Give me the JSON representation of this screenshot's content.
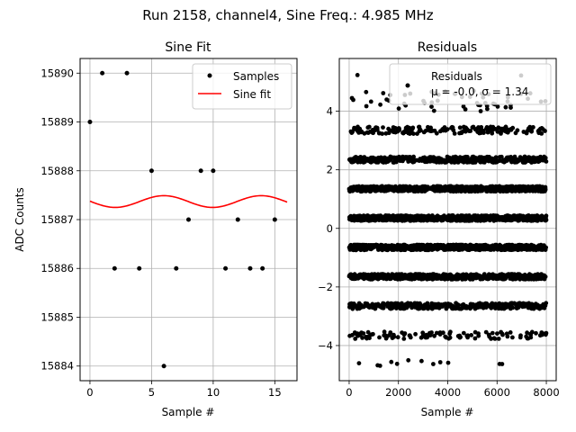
{
  "figure_title": "Run 2158, channel4, Sine Freq.: 4.985 MHz",
  "chart_data": [
    {
      "type": "scatter",
      "title": "Sine Fit",
      "xlabel": "Sample #",
      "ylabel": "ADC Counts",
      "xlim": [
        -0.8,
        16.8
      ],
      "ylim": [
        15883.7,
        15890.3
      ],
      "xticks": [
        0,
        5,
        10,
        15
      ],
      "yticks": [
        15884,
        15885,
        15886,
        15887,
        15888,
        15889,
        15890
      ],
      "grid": true,
      "legend_position": "top-right",
      "series": [
        {
          "name": "Samples",
          "kind": "points",
          "color": "#000000",
          "x": [
            0,
            1,
            2,
            3,
            4,
            5,
            6,
            7,
            8,
            9,
            10,
            11,
            12,
            13,
            14,
            15
          ],
          "y": [
            15889,
            15890,
            15886,
            15890,
            15886,
            15888,
            15884,
            15886,
            15887,
            15888,
            15888,
            15886,
            15887,
            15886,
            15886,
            15887
          ]
        },
        {
          "name": "Sine fit",
          "kind": "line",
          "color": "#ff0000",
          "model": {
            "offset": 15887.37,
            "amplitude": 0.12,
            "period": 7.9,
            "phase_peak_at": 6.0,
            "x_start": 0,
            "x_end": 16,
            "samples": 161
          }
        }
      ]
    },
    {
      "type": "scatter",
      "title": "Residuals",
      "xlabel": "Sample #",
      "ylabel": "",
      "xlim": [
        -400,
        8400
      ],
      "ylim": [
        -5.2,
        5.8
      ],
      "xticks": [
        0,
        2000,
        4000,
        6000,
        8000
      ],
      "yticks": [
        -4,
        -2,
        0,
        2,
        4
      ],
      "grid": true,
      "legend_position": "top-right",
      "legend": {
        "label": "Residuals",
        "stats": "μ = -0.0, σ = 1.34"
      },
      "series": [
        {
          "name": "Residuals",
          "kind": "banded-points",
          "color": "#000000",
          "x_range": [
            0,
            8000
          ],
          "bands": [
            {
              "level": 4.35,
              "jitter": 0.35,
              "count": 55
            },
            {
              "level": 3.35,
              "jitter": 0.12,
              "count": 180
            },
            {
              "level": 2.35,
              "jitter": 0.1,
              "count": 450
            },
            {
              "level": 1.35,
              "jitter": 0.09,
              "count": 700
            },
            {
              "level": 0.35,
              "jitter": 0.09,
              "count": 750
            },
            {
              "level": -0.65,
              "jitter": 0.09,
              "count": 750
            },
            {
              "level": -1.65,
              "jitter": 0.09,
              "count": 600
            },
            {
              "level": -2.65,
              "jitter": 0.1,
              "count": 380
            },
            {
              "level": -3.65,
              "jitter": 0.12,
              "count": 110
            },
            {
              "level": -4.6,
              "jitter": 0.1,
              "count": 12
            },
            {
              "level": 5.2,
              "jitter": 0.05,
              "count": 3
            }
          ]
        }
      ]
    }
  ]
}
